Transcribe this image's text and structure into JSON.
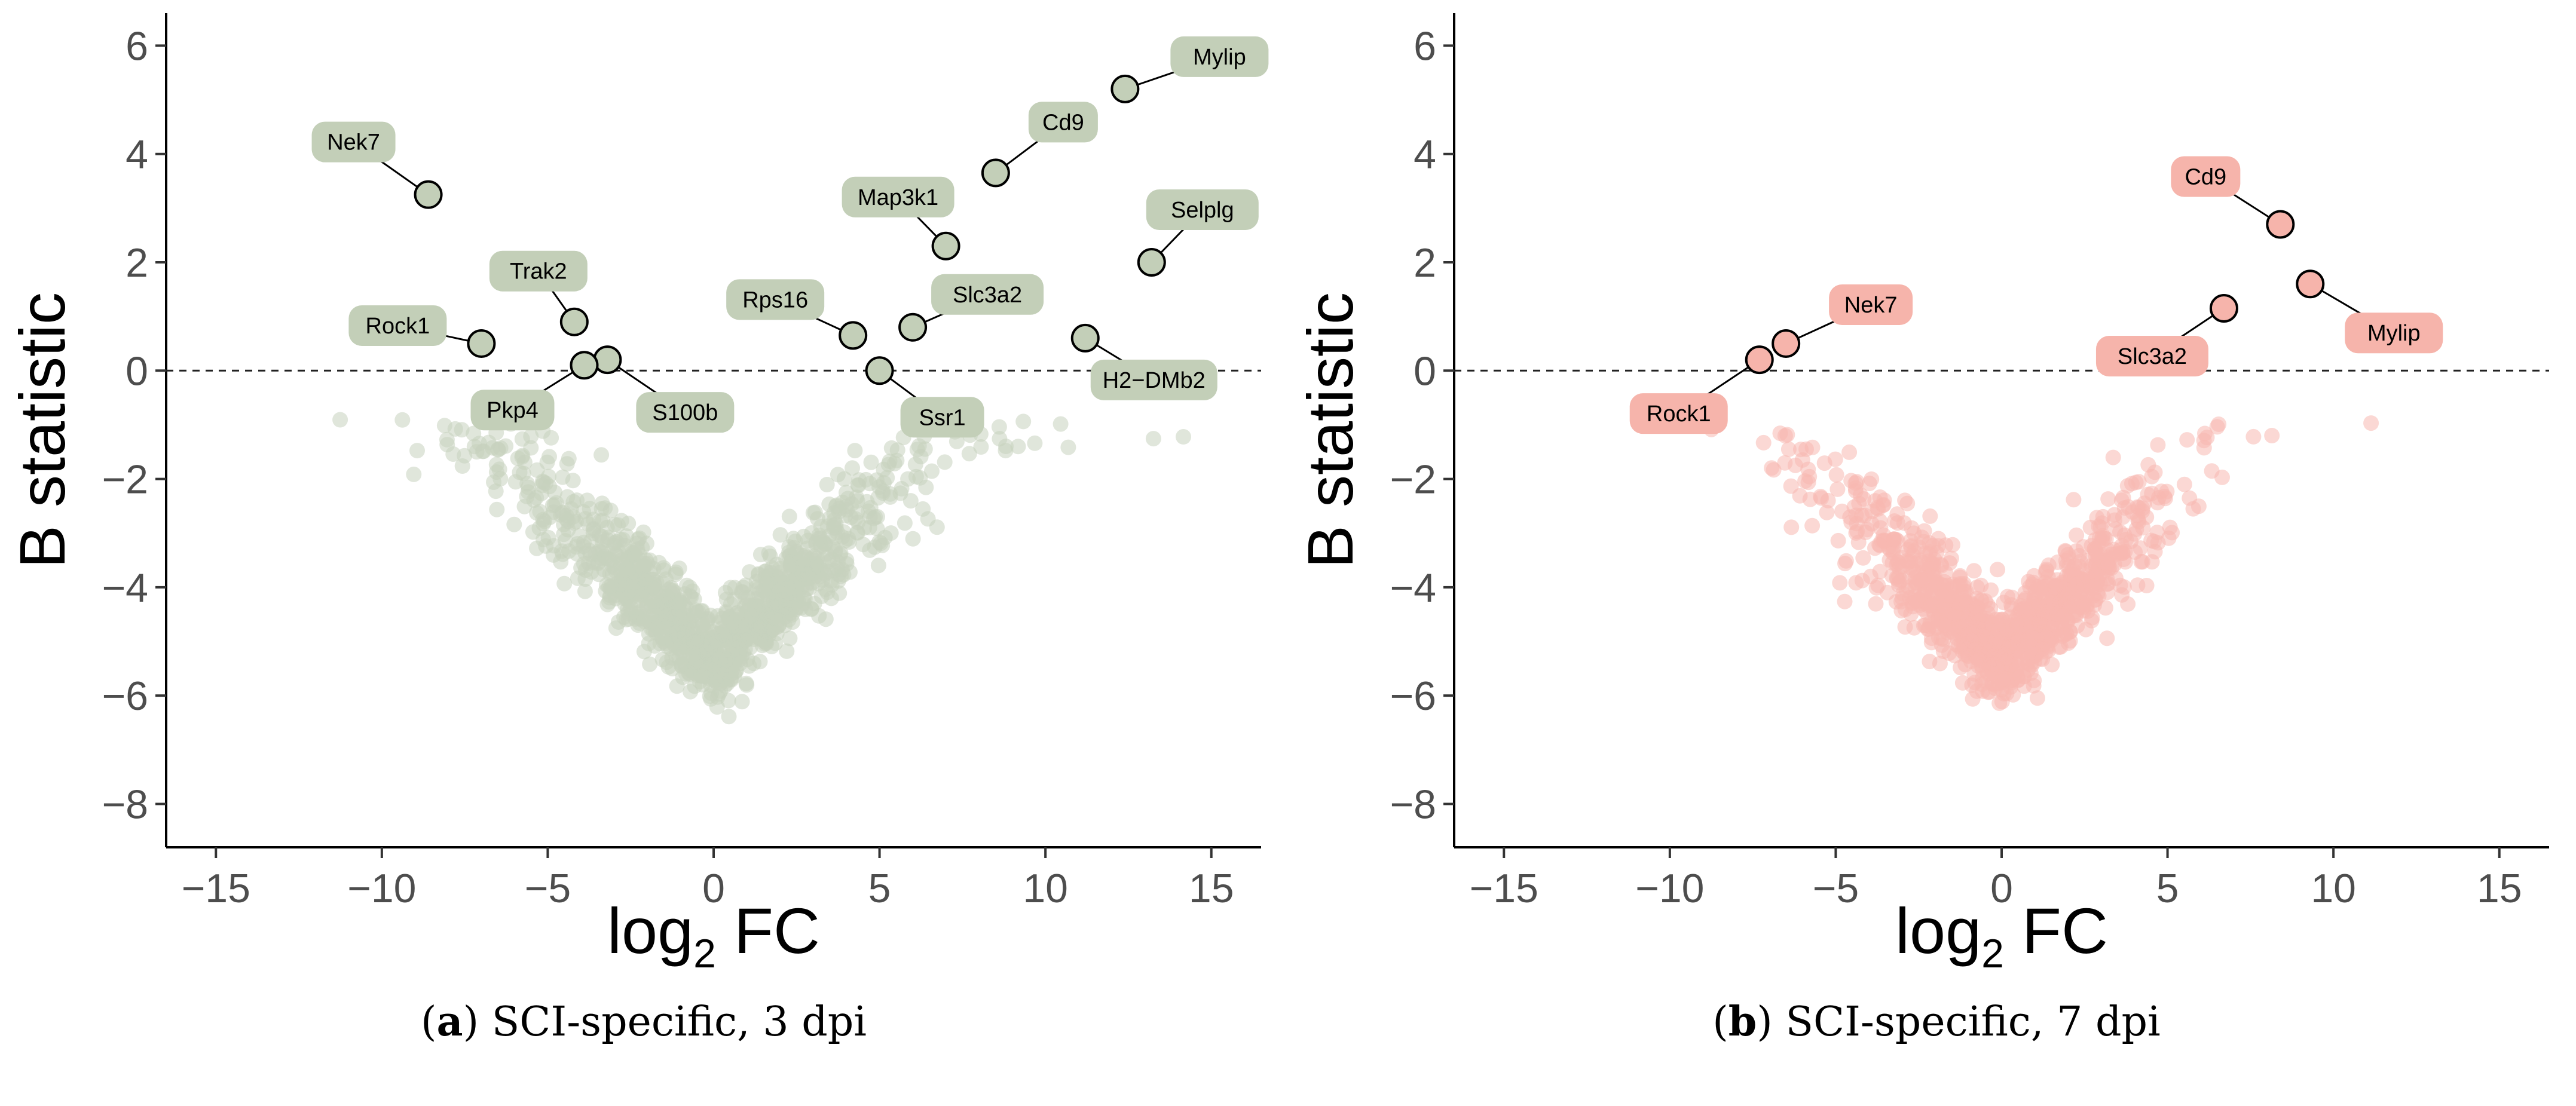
{
  "figure": {
    "panels": [
      {
        "id": "a",
        "caption_letter": "a",
        "caption_text": "SCI-specific, 3 dpi",
        "point_color": "#c6d2bd",
        "label_fill": "#c3cfb8",
        "highlight_fill": "#c3cfb8"
      },
      {
        "id": "b",
        "caption_letter": "b",
        "caption_text": "SCI-specific, 7 dpi",
        "point_color": "#f7b8b0",
        "label_fill": "#f6b4ab",
        "highlight_fill": "#f6b4ab"
      }
    ]
  },
  "chart_data": [
    {
      "type": "scatter",
      "title": "",
      "xlabel": "log2 FC",
      "xlabel_base": "log",
      "xlabel_sub": "2",
      "xlabel_rest": " FC",
      "ylabel": "B statistic",
      "xlim": [
        -16.5,
        16.5
      ],
      "ylim": [
        -8.8,
        6.6
      ],
      "xticks": [
        -15,
        -10,
        -5,
        0,
        5,
        10,
        15
      ],
      "yticks": [
        -8,
        -6,
        -4,
        -2,
        0,
        2,
        4,
        6
      ],
      "threshold_y": 0,
      "highlighted": [
        {
          "gene": "Mylip",
          "x": 12.4,
          "y": 5.2
        },
        {
          "gene": "Cd9",
          "x": 8.5,
          "y": 3.65
        },
        {
          "gene": "Nek7",
          "x": -8.6,
          "y": 3.25
        },
        {
          "gene": "Map3k1",
          "x": 7.0,
          "y": 2.3
        },
        {
          "gene": "Selplg",
          "x": 13.2,
          "y": 2.0
        },
        {
          "gene": "Trak2",
          "x": -4.2,
          "y": 0.9
        },
        {
          "gene": "Slc3a2",
          "x": 6.0,
          "y": 0.8
        },
        {
          "gene": "Rps16",
          "x": 4.2,
          "y": 0.65
        },
        {
          "gene": "H2−DMb2",
          "x": 11.2,
          "y": 0.6
        },
        {
          "gene": "Rock1",
          "x": -7.0,
          "y": 0.5
        },
        {
          "gene": "S100b",
          "x": -3.2,
          "y": 0.2
        },
        {
          "gene": "Pkp4",
          "x": -3.9,
          "y": 0.1
        },
        {
          "gene": "Ssr1",
          "x": 5.0,
          "y": 0.0
        }
      ]
    },
    {
      "type": "scatter",
      "title": "",
      "xlabel": "log2 FC",
      "xlabel_base": "log",
      "xlabel_sub": "2",
      "xlabel_rest": " FC",
      "ylabel": "B statistic",
      "xlim": [
        -16.5,
        16.5
      ],
      "ylim": [
        -8.8,
        6.6
      ],
      "xticks": [
        -15,
        -10,
        -5,
        0,
        5,
        10,
        15
      ],
      "yticks": [
        -8,
        -6,
        -4,
        -2,
        0,
        2,
        4,
        6
      ],
      "threshold_y": 0,
      "highlighted": [
        {
          "gene": "Cd9",
          "x": 8.4,
          "y": 2.7
        },
        {
          "gene": "Mylip",
          "x": 9.3,
          "y": 1.6
        },
        {
          "gene": "Slc3a2",
          "x": 6.7,
          "y": 1.15
        },
        {
          "gene": "Nek7",
          "x": -6.5,
          "y": 0.5
        },
        {
          "gene": "Rock1",
          "x": -7.3,
          "y": 0.2
        }
      ]
    }
  ]
}
